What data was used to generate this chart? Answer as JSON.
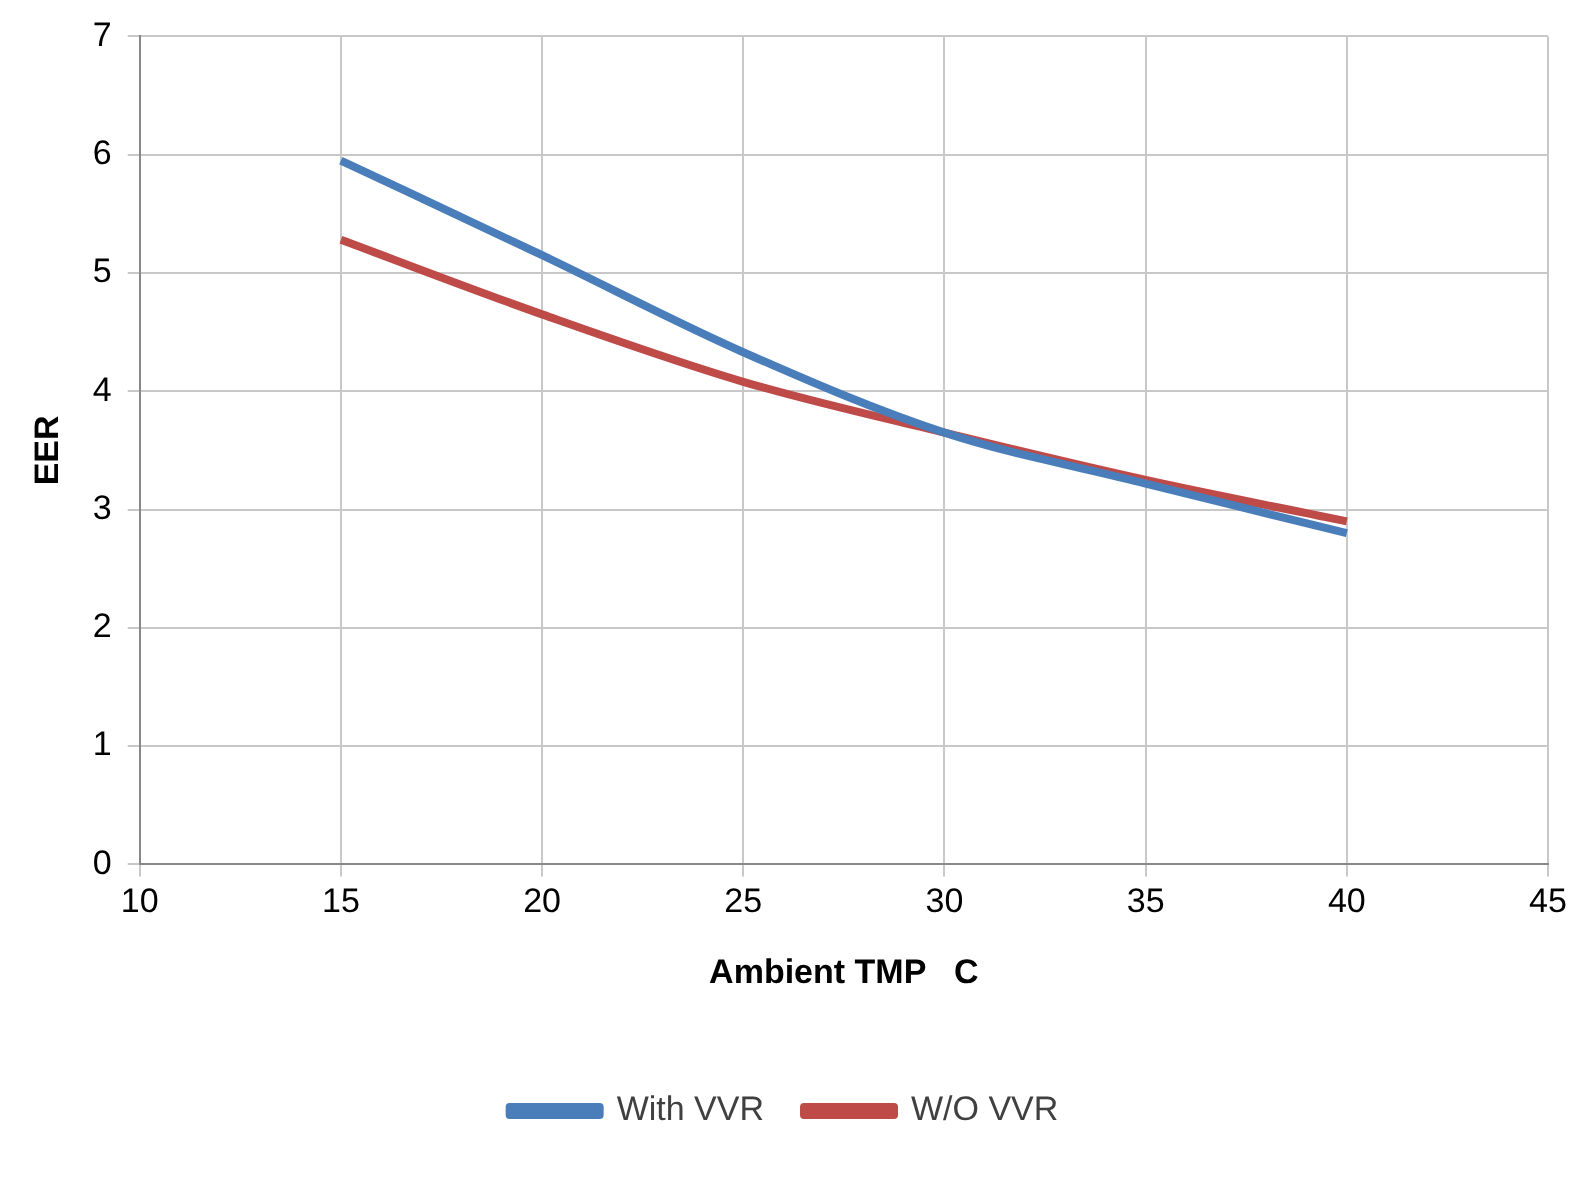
{
  "chart_data": {
    "type": "line",
    "xlabel": "Ambient TMP   C",
    "ylabel": "EER",
    "x": [
      15,
      20,
      25,
      30,
      35,
      40
    ],
    "series": [
      {
        "name": "With VVR",
        "color": "#4a7ebb",
        "values": [
          5.95,
          5.15,
          4.33,
          3.65,
          3.22,
          2.8
        ]
      },
      {
        "name": "W/O VVR",
        "color": "#be4b48",
        "values": [
          5.28,
          4.65,
          4.08,
          3.65,
          3.25,
          2.9
        ]
      }
    ],
    "xlim": [
      10,
      45
    ],
    "xticks": [
      10,
      15,
      20,
      25,
      30,
      35,
      40,
      45
    ],
    "ylim": [
      0,
      7
    ],
    "yticks": [
      0,
      1,
      2,
      3,
      4,
      5,
      6,
      7
    ],
    "grid": true,
    "legend": "bottom",
    "marker": "none",
    "line_style": "solid"
  }
}
